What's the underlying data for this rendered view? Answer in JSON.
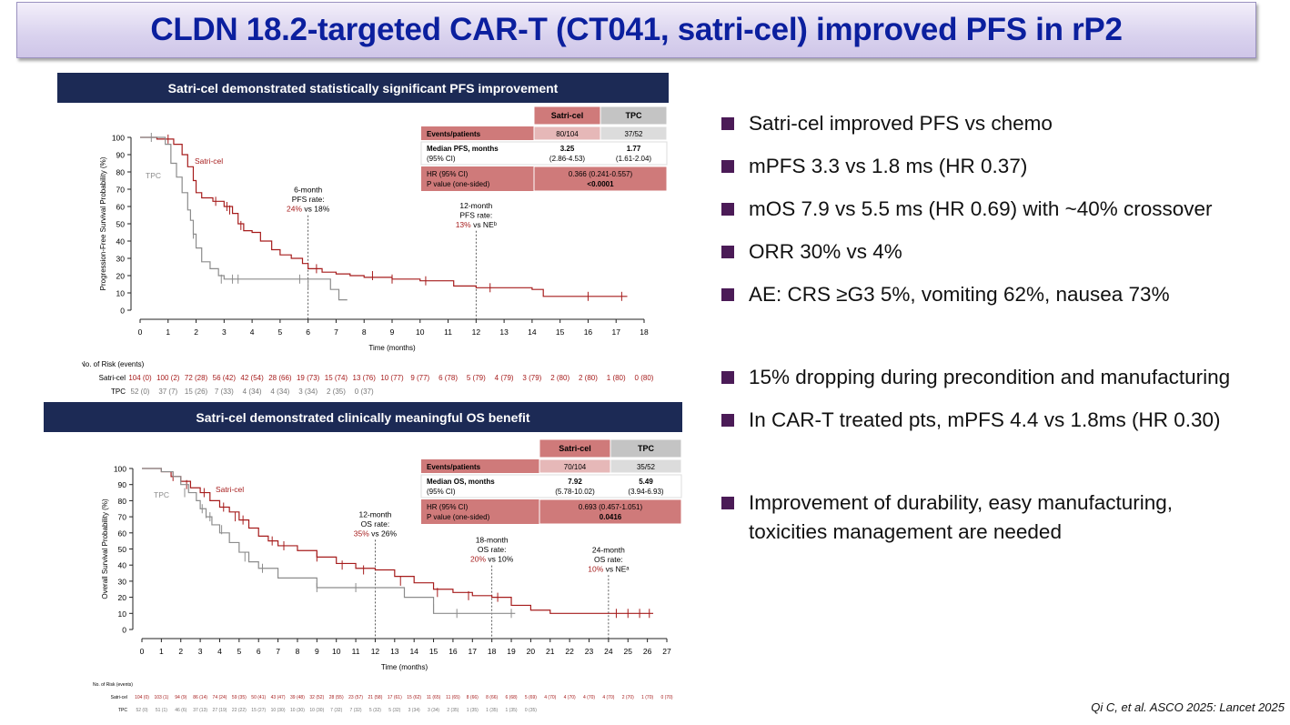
{
  "slide": {
    "title": "CLDN 18.2-targeted CAR-T (CT041, satri-cel) improved PFS in rP2",
    "citation": "Qi C, et al. ASCO 2025: Lancet 2025"
  },
  "colors": {
    "satri_cel": "#a61c1c",
    "tpc": "#8c8c8c",
    "header_bg": "#1c2a55",
    "table_red": "#cf7a7a",
    "title_text": "#0b1f9e"
  },
  "bullets": [
    "Satri-cel improved PFS vs chemo",
    "mPFS 3.3 vs 1.8 ms (HR 0.37)",
    "mOS 7.9 vs 5.5 ms (HR 0.69) with ~40% crossover",
    "ORR 30% vs 4%",
    "AE: CRS ≥G3 5%, vomiting 62%, nausea 73%",
    "15% dropping during precondition and manufacturing",
    "In CAR-T treated pts, mPFS 4.4 vs 1.8ms (HR 0.30)",
    "Improvement of durability, easy manufacturing, toxicities management are needed"
  ],
  "pfs": {
    "header": "Satri-cel demonstrated statistically significant PFS improvement",
    "table": {
      "col1": "Satri-cel",
      "col2": "TPC",
      "events_label": "Events/patients",
      "events_satri": "80/104",
      "events_tpc": "37/52",
      "median_label": "Median PFS, months",
      "ci_label": "(95% CI)",
      "median_satri": "3.25",
      "ci_satri": "(2.86-4.53)",
      "median_tpc": "1.77",
      "ci_tpc": "(1.61-2.04)",
      "hr_label": "HR (95% CI)",
      "p_label": "P value (one-sided)",
      "hr_value": "0.366 (0.241-0.557)",
      "p_value": "<0.0001"
    },
    "annotations": [
      {
        "lines": [
          "6-month",
          "PFS rate:"
        ],
        "red": "24%",
        "rest": " vs 18%",
        "x": 6,
        "y": 57
      },
      {
        "lines": [
          "12-month",
          "PFS rate:"
        ],
        "red": "13%",
        "rest": " vs NEᵇ",
        "x": 12,
        "y": 48
      }
    ],
    "risk_title": "No. of Risk (events)",
    "risk_satri_label": "Satri-cel",
    "risk_tpc_label": "TPC",
    "risk_satri": [
      "104 (0)",
      "100 (2)",
      "72 (28)",
      "56 (42)",
      "42 (54)",
      "28 (66)",
      "19 (73)",
      "15 (74)",
      "13 (76)",
      "10 (77)",
      "9 (77)",
      "6 (78)",
      "5 (79)",
      "4 (79)",
      "3 (79)",
      "2 (80)",
      "2 (80)",
      "1 (80)",
      "0 (80)"
    ],
    "risk_tpc": [
      "52 (0)",
      "37 (7)",
      "15 (26)",
      "7 (33)",
      "4 (34)",
      "4 (34)",
      "3 (34)",
      "2 (35)",
      "0 (37)"
    ]
  },
  "os": {
    "header": "Satri-cel demonstrated clinically meaningful OS benefit",
    "table": {
      "col1": "Satri-cel",
      "col2": "TPC",
      "events_label": "Events/patients",
      "events_satri": "70/104",
      "events_tpc": "35/52",
      "median_label": "Median OS, months",
      "ci_label": "(95% CI)",
      "median_satri": "7.92",
      "ci_satri": "(5.78-10.02)",
      "median_tpc": "5.49",
      "ci_tpc": "(3.94-6.93)",
      "hr_label": "HR (95% CI)",
      "p_label": "P value (one-sided)",
      "hr_value": "0.693 (0.457-1.051)",
      "p_value": "0.0416"
    },
    "annotations": [
      {
        "lines": [
          "12-month",
          "OS rate:"
        ],
        "red": "35%",
        "rest": " vs 26%",
        "x": 12,
        "y": 58
      },
      {
        "lines": [
          "18-month",
          "OS rate:"
        ],
        "red": "20%",
        "rest": " vs 10%",
        "x": 18,
        "y": 42
      },
      {
        "lines": [
          "24-month",
          "OS rate:"
        ],
        "red": "10%",
        "rest": " vs NEᵃ",
        "x": 24,
        "y": 36
      }
    ],
    "risk_title": "No. of Risk (events)",
    "risk_satri_label": "Satri-cel",
    "risk_tpc_label": "TPC",
    "risk_satri": [
      "104 (0)",
      "103 (1)",
      "94 (9)",
      "86 (14)",
      "74 (24)",
      "59 (35)",
      "50 (41)",
      "43 (47)",
      "39 (48)",
      "32 (52)",
      "28 (55)",
      "23 (57)",
      "21 (58)",
      "17 (61)",
      "15 (62)",
      "11 (65)",
      "11 (65)",
      "8 (66)",
      "8 (66)",
      "6 (68)",
      "5 (69)",
      "4 (70)",
      "4 (70)",
      "4 (70)",
      "4 (70)",
      "2 (70)",
      "1 (70)",
      "0 (70)"
    ],
    "risk_tpc": [
      "52 (0)",
      "51 (1)",
      "46 (6)",
      "37 (13)",
      "27 (19)",
      "22 (22)",
      "15 (27)",
      "10 (30)",
      "10 (30)",
      "10 (30)",
      "7 (32)",
      "7 (32)",
      "5 (32)",
      "5 (32)",
      "3 (34)",
      "3 (34)",
      "2 (35)",
      "1 (35)",
      "1 (35)",
      "1 (35)",
      "0 (35)"
    ]
  },
  "chart_data": [
    {
      "type": "line",
      "title": "",
      "xlabel": "Time (months)",
      "ylabel": "Progression-Free Survival Probability (%)",
      "xlim": [
        0,
        18
      ],
      "ylim": [
        0,
        100
      ],
      "xticks": [
        0,
        1,
        2,
        3,
        4,
        5,
        6,
        7,
        8,
        9,
        10,
        11,
        12,
        13,
        14,
        15,
        16,
        17,
        18
      ],
      "yticks": [
        0,
        10,
        20,
        30,
        40,
        50,
        60,
        70,
        80,
        90,
        100
      ],
      "step": true,
      "series": [
        {
          "name": "Satri-cel",
          "color": "#a61c1c",
          "x": [
            0,
            0.6,
            1.2,
            1.5,
            1.7,
            1.9,
            2.0,
            2.2,
            2.6,
            3.0,
            3.3,
            3.5,
            3.7,
            4.0,
            4.3,
            4.7,
            5.0,
            5.4,
            5.8,
            6.0,
            6.5,
            7.0,
            7.5,
            8.0,
            9.0,
            10.0,
            11.2,
            12.0,
            14.0,
            14.4,
            17.4
          ],
          "y": [
            100,
            99,
            96,
            90,
            83,
            75,
            68,
            65,
            63,
            60,
            56,
            50,
            46,
            45,
            40,
            35,
            32,
            30,
            27,
            24,
            22,
            21,
            20,
            19,
            18,
            17,
            14,
            13,
            12,
            8,
            8
          ],
          "censors": [
            [
              1.0,
              99
            ],
            [
              2.7,
              63
            ],
            [
              3.1,
              60
            ],
            [
              3.2,
              58
            ],
            [
              3.6,
              49
            ],
            [
              6.3,
              24
            ],
            [
              8.3,
              20
            ],
            [
              9.0,
              18
            ],
            [
              10.2,
              17
            ],
            [
              12.5,
              13
            ],
            [
              16.0,
              8
            ],
            [
              17.2,
              8
            ]
          ]
        },
        {
          "name": "TPC",
          "color": "#8c8c8c",
          "x": [
            0,
            0.9,
            1.1,
            1.3,
            1.5,
            1.7,
            1.8,
            1.9,
            2.0,
            2.2,
            2.5,
            2.8,
            3.0,
            6.0,
            6.8,
            7.1,
            7.4
          ],
          "y": [
            100,
            96,
            85,
            77,
            68,
            58,
            52,
            44,
            36,
            28,
            24,
            20,
            18,
            18,
            12,
            6,
            6
          ],
          "censors": [
            [
              0.4,
              100
            ],
            [
              1.9,
              44
            ],
            [
              2.9,
              18
            ],
            [
              3.3,
              18
            ],
            [
              3.5,
              18
            ],
            [
              5.7,
              18
            ],
            [
              6.0,
              15
            ]
          ]
        }
      ]
    },
    {
      "type": "line",
      "title": "",
      "xlabel": "Time (months)",
      "ylabel": "Overall Survival Probability (%)",
      "xlim": [
        0,
        27
      ],
      "ylim": [
        0,
        100
      ],
      "xticks": [
        0,
        1,
        2,
        3,
        4,
        5,
        6,
        7,
        8,
        9,
        10,
        11,
        12,
        13,
        14,
        15,
        16,
        17,
        18,
        19,
        20,
        21,
        22,
        23,
        24,
        25,
        26,
        27
      ],
      "yticks": [
        0,
        10,
        20,
        30,
        40,
        50,
        60,
        70,
        80,
        90,
        100
      ],
      "step": true,
      "series": [
        {
          "name": "Satri-cel",
          "color": "#a61c1c",
          "x": [
            0,
            1.0,
            1.5,
            2.0,
            2.5,
            3.0,
            3.5,
            4.0,
            4.5,
            5.0,
            5.5,
            6.0,
            6.5,
            7.0,
            8.0,
            9.0,
            10.0,
            11.0,
            12.0,
            13.0,
            14.0,
            15.0,
            16.0,
            17.0,
            18.0,
            19.0,
            20.0,
            21.0,
            22.0,
            24.0,
            26.3
          ],
          "y": [
            100,
            98,
            95,
            92,
            88,
            85,
            80,
            76,
            73,
            68,
            63,
            58,
            55,
            52,
            49,
            45,
            41,
            38,
            37,
            33,
            29,
            25,
            23,
            21,
            20,
            15,
            12,
            10,
            10,
            10,
            10
          ],
          "censors": [
            [
              1.6,
              95
            ],
            [
              2.3,
              90
            ],
            [
              3.2,
              85
            ],
            [
              4.2,
              76
            ],
            [
              4.8,
              70
            ],
            [
              5.2,
              68
            ],
            [
              6.7,
              55
            ],
            [
              7.3,
              52
            ],
            [
              9.0,
              45
            ],
            [
              10.3,
              40
            ],
            [
              11.4,
              37
            ],
            [
              13.3,
              30
            ],
            [
              15.2,
              23
            ],
            [
              16.8,
              21
            ],
            [
              18.3,
              20
            ],
            [
              24.4,
              10
            ],
            [
              25.0,
              10
            ],
            [
              25.6,
              10
            ],
            [
              26.1,
              10
            ]
          ]
        },
        {
          "name": "TPC",
          "color": "#8c8c8c",
          "x": [
            0,
            1.0,
            1.6,
            2.0,
            2.4,
            2.8,
            3.0,
            3.3,
            3.6,
            4.0,
            4.5,
            5.0,
            5.5,
            6.0,
            7.0,
            9.0,
            12.0,
            13.5,
            15.0,
            18.0,
            19.2
          ],
          "y": [
            100,
            98,
            95,
            90,
            85,
            80,
            75,
            70,
            65,
            60,
            54,
            48,
            42,
            38,
            32,
            26,
            26,
            20,
            10,
            10,
            10
          ],
          "censors": [
            [
              2.2,
              85
            ],
            [
              3.1,
              75
            ],
            [
              3.3,
              72
            ],
            [
              3.5,
              70
            ],
            [
              4.1,
              62
            ],
            [
              5.3,
              45
            ],
            [
              6.2,
              38
            ],
            [
              9.0,
              26
            ],
            [
              11.0,
              26
            ],
            [
              15.0,
              13
            ],
            [
              16.2,
              10
            ],
            [
              19.0,
              10
            ]
          ]
        }
      ]
    }
  ]
}
